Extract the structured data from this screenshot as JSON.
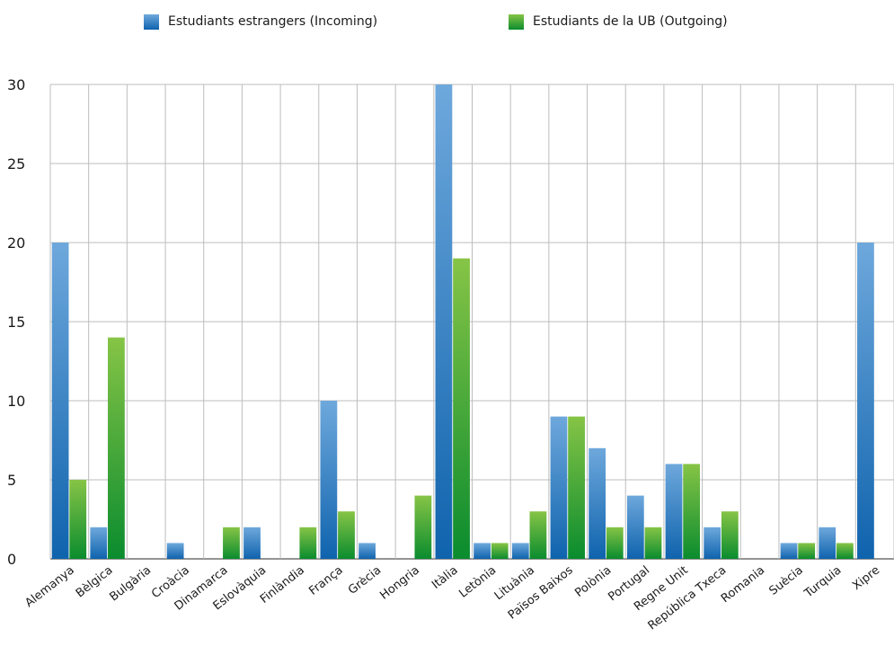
{
  "legend": {
    "incoming_label": "Estudiants estrangers (Incoming)",
    "outgoing_label": "Estudiants de la UB (Outgoing)"
  },
  "colors": {
    "incoming_top": "#6ea8dc",
    "incoming_bottom": "#0f63ad",
    "outgoing_top": "#86c446",
    "outgoing_bottom": "#0a8c2e",
    "grid": "#bdbdbd",
    "axis_text": "#1a1a1a"
  },
  "chart_data": {
    "type": "bar",
    "categories": [
      "Alemanya",
      "Bèlgica",
      "Bulgària",
      "Croàcia",
      "Dinamarca",
      "Eslovàquia",
      "Finlàndia",
      "França",
      "Grècia",
      "Hongria",
      "Itàlia",
      "Letònia",
      "Lituània",
      "Països Baixos",
      "Polònia",
      "Portugal",
      "Regne Unit",
      "República Txeca",
      "Romania",
      "Suècia",
      "Turquia",
      "Xipre"
    ],
    "series": [
      {
        "name": "Estudiants estrangers (Incoming)",
        "values": [
          20,
          2,
          0,
          1,
          0,
          2,
          0,
          10,
          1,
          0,
          30,
          1,
          1,
          9,
          7,
          4,
          6,
          2,
          0,
          1,
          2,
          20
        ]
      },
      {
        "name": "Estudiants de la UB (Outgoing)",
        "values": [
          5,
          14,
          0,
          0,
          2,
          0,
          2,
          3,
          0,
          4,
          19,
          1,
          3,
          9,
          2,
          2,
          6,
          3,
          0,
          1,
          1,
          0
        ]
      }
    ],
    "ylim": [
      0,
      30
    ],
    "yticks": [
      0,
      5,
      10,
      15,
      20,
      25,
      30
    ],
    "grid": true,
    "legend_position": "top-center"
  }
}
